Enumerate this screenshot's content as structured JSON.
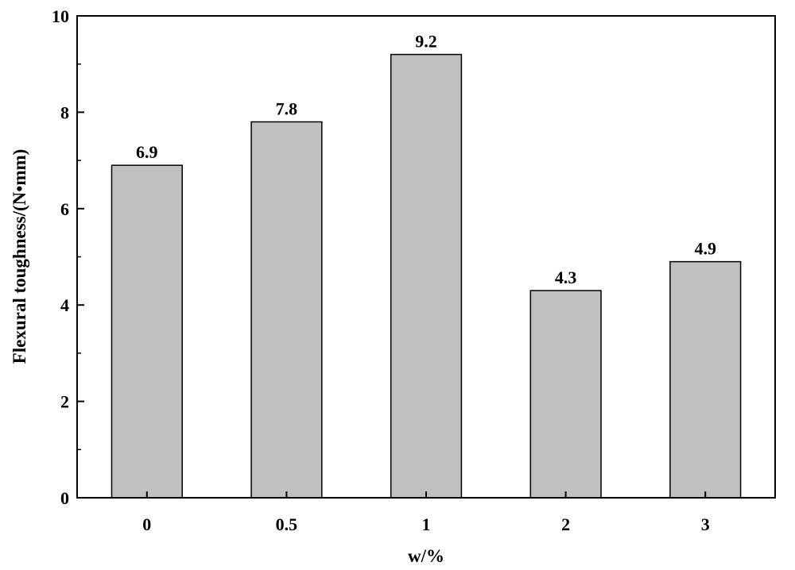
{
  "chart_data": {
    "type": "bar",
    "categories": [
      "0",
      "0.5",
      "1",
      "2",
      "3"
    ],
    "values": [
      6.9,
      7.8,
      9.2,
      4.3,
      4.9
    ],
    "data_labels": [
      "6.9",
      "7.8",
      "9.2",
      "4.3",
      "4.9"
    ],
    "xlabel": "w/%",
    "ylabel": "Flexural toughness/(N•mm)",
    "ylim": [
      0,
      10
    ],
    "yticks": [
      0,
      2,
      4,
      6,
      8,
      10
    ],
    "ytick_labels": [
      "0",
      "2",
      "4",
      "6",
      "8",
      "10"
    ],
    "grid": false,
    "legend": "none",
    "bar_color": "#c0c0c0",
    "bar_edge_color": "#000000"
  }
}
